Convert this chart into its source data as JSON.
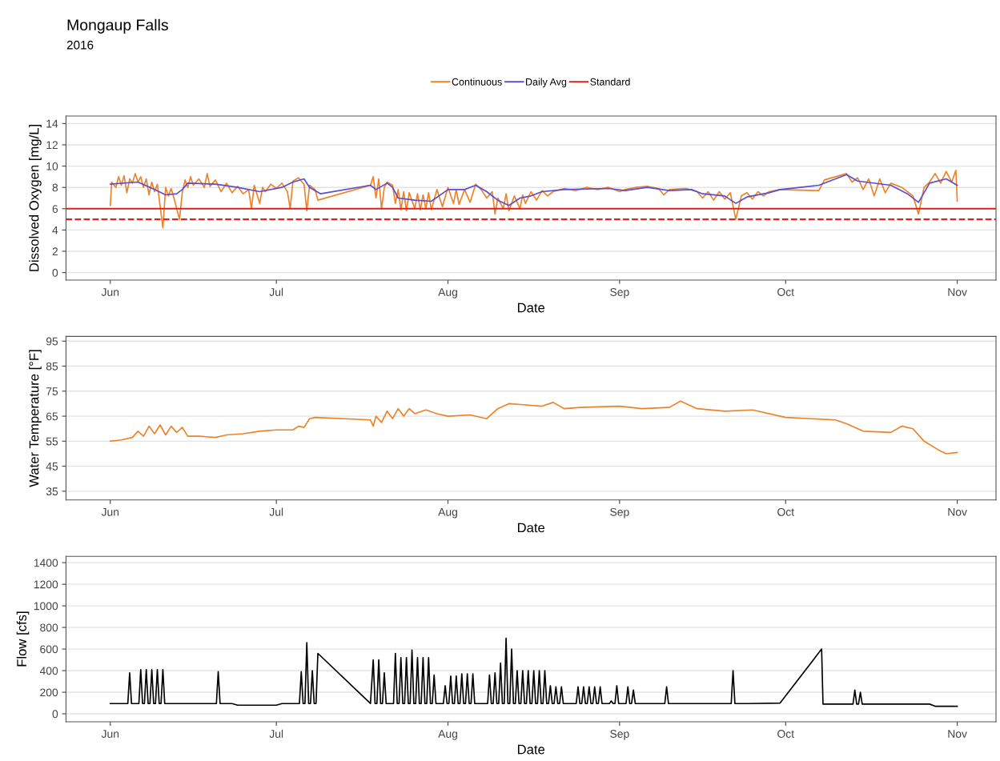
{
  "chart_data": [
    {
      "type": "line",
      "title": "Mongaup Falls",
      "subtitle": "2016",
      "xlabel": "Date",
      "ylabel": "Dissolved Oxygen [mg/L]",
      "legend": "top",
      "grid": "y",
      "line_style": "solid",
      "xlim": [
        "2016-05-24",
        "2016-11-08"
      ],
      "xticks": [
        {
          "value": "2016-06-01",
          "label": "Jun"
        },
        {
          "value": "2016-07-01",
          "label": "Jul"
        },
        {
          "value": "2016-08-01",
          "label": "Aug"
        },
        {
          "value": "2016-09-01",
          "label": "Sep"
        },
        {
          "value": "2016-10-01",
          "label": "Oct"
        },
        {
          "value": "2016-11-01",
          "label": "Nov"
        }
      ],
      "ylim": [
        -0.7,
        14.7
      ],
      "yticks": [
        0,
        2,
        4,
        6,
        8,
        10,
        12,
        14
      ],
      "ref_lines": [
        {
          "axis": "y",
          "value": 6,
          "label": "Standard",
          "color": "#e0201b",
          "line_style": "solid"
        },
        {
          "axis": "y",
          "value": 5,
          "color": "#e0201b",
          "line_style": "dashed"
        }
      ],
      "series": [
        {
          "name": "Continuous",
          "color": "#ee8228",
          "x": [
            "2016-06-01T00:00",
            "2016-06-01T06:00",
            "2016-06-02",
            "2016-06-02T12:00",
            "2016-06-03",
            "2016-06-03T12:00",
            "2016-06-04",
            "2016-06-04T12:00",
            "2016-06-05",
            "2016-06-05T12:00",
            "2016-06-06",
            "2016-06-06T12:00",
            "2016-06-07",
            "2016-06-07T12:00",
            "2016-06-08",
            "2016-06-08T12:00",
            "2016-06-09",
            "2016-06-09T12:00",
            "2016-06-10T12:00",
            "2016-06-11",
            "2016-06-11T12:00",
            "2016-06-12",
            "2016-06-12T12:00",
            "2016-06-13T12:00",
            "2016-06-14",
            "2016-06-14T12:00",
            "2016-06-15",
            "2016-06-15T12:00",
            "2016-06-16",
            "2016-06-17",
            "2016-06-18",
            "2016-06-18T12:00",
            "2016-06-19",
            "2016-06-20",
            "2016-06-21",
            "2016-06-22",
            "2016-06-23",
            "2016-06-24",
            "2016-06-25",
            "2016-06-26",
            "2016-06-26T12:00",
            "2016-06-27",
            "2016-06-28",
            "2016-06-28T12:00",
            "2016-06-29",
            "2016-06-30",
            "2016-07-01",
            "2016-07-02",
            "2016-07-03",
            "2016-07-03T12:00",
            "2016-07-04",
            "2016-07-05",
            "2016-07-06",
            "2016-07-06T12:00",
            "2016-07-07",
            "2016-07-08",
            "2016-07-08T12:00",
            "2016-07-18",
            "2016-07-18T12:00",
            "2016-07-19",
            "2016-07-19T12:00",
            "2016-07-20",
            "2016-07-20T12:00",
            "2016-07-21",
            "2016-07-22",
            "2016-07-22T12:00",
            "2016-07-23",
            "2016-07-23T12:00",
            "2016-07-24",
            "2016-07-24T12:00",
            "2016-07-25",
            "2016-07-26",
            "2016-07-26T12:00",
            "2016-07-27",
            "2016-07-27T12:00",
            "2016-07-28",
            "2016-07-28T12:00",
            "2016-07-29",
            "2016-07-30",
            "2016-07-31",
            "2016-08-01",
            "2016-08-02",
            "2016-08-02T12:00",
            "2016-08-03",
            "2016-08-04",
            "2016-08-05",
            "2016-08-06",
            "2016-08-07",
            "2016-08-08",
            "2016-08-09",
            "2016-08-09T12:00",
            "2016-08-10",
            "2016-08-11",
            "2016-08-11T12:00",
            "2016-08-12",
            "2016-08-13",
            "2016-08-14",
            "2016-08-14T12:00",
            "2016-08-15",
            "2016-08-16",
            "2016-08-17",
            "2016-08-18",
            "2016-08-19",
            "2016-08-20",
            "2016-08-22",
            "2016-08-24",
            "2016-08-26",
            "2016-08-28",
            "2016-08-30",
            "2016-09-01",
            "2016-09-02",
            "2016-09-04",
            "2016-09-06",
            "2016-09-08",
            "2016-09-09",
            "2016-09-10",
            "2016-09-13",
            "2016-09-15",
            "2016-09-16",
            "2016-09-17",
            "2016-09-18",
            "2016-09-19",
            "2016-09-20",
            "2016-09-21",
            "2016-09-22",
            "2016-09-23",
            "2016-09-24",
            "2016-09-25",
            "2016-09-26",
            "2016-09-27",
            "2016-09-28",
            "2016-09-30",
            "2016-10-07",
            "2016-10-08",
            "2016-10-12",
            "2016-10-13",
            "2016-10-14",
            "2016-10-15",
            "2016-10-16",
            "2016-10-17",
            "2016-10-18",
            "2016-10-19",
            "2016-10-20",
            "2016-10-22",
            "2016-10-24",
            "2016-10-25",
            "2016-10-26",
            "2016-10-27",
            "2016-10-28",
            "2016-10-29",
            "2016-10-30",
            "2016-10-31",
            "2016-10-31T18:00",
            "2016-11-01"
          ],
          "values": [
            6.3,
            8.5,
            8.0,
            9.0,
            8.2,
            9.1,
            7.5,
            8.8,
            8.4,
            9.3,
            8.5,
            9.0,
            8.0,
            8.8,
            7.3,
            8.5,
            7.6,
            8.3,
            4.2,
            8.0,
            7.2,
            7.9,
            7.0,
            5.0,
            7.5,
            8.7,
            8.0,
            9.0,
            8.2,
            8.8,
            8.0,
            9.3,
            8.1,
            8.7,
            7.6,
            8.4,
            7.5,
            8.1,
            7.4,
            7.8,
            6.0,
            8.2,
            6.5,
            8.0,
            7.6,
            8.3,
            7.9,
            8.4,
            7.6,
            6.0,
            8.6,
            8.9,
            8.3,
            5.8,
            8.2,
            7.8,
            6.8,
            8.2,
            9.0,
            7.0,
            8.8,
            6.0,
            8.0,
            8.5,
            8.2,
            6.5,
            7.8,
            5.9,
            7.6,
            5.8,
            7.5,
            6.0,
            7.4,
            5.9,
            7.3,
            6.0,
            7.5,
            5.9,
            7.8,
            6.2,
            8.0,
            6.5,
            7.8,
            6.4,
            7.8,
            6.6,
            8.3,
            7.8,
            7.0,
            7.6,
            5.5,
            7.0,
            6.0,
            7.4,
            5.8,
            7.2,
            6.0,
            7.3,
            6.5,
            7.6,
            6.8,
            7.7,
            7.2,
            7.6,
            7.9,
            7.7,
            8.0,
            7.8,
            8.0,
            7.6,
            7.8,
            8.0,
            8.1,
            7.9,
            7.3,
            7.8,
            7.9,
            7.6,
            7.0,
            7.6,
            6.8,
            7.6,
            6.9,
            7.5,
            5.0,
            7.2,
            7.5,
            6.9,
            7.6,
            7.2,
            7.6,
            7.8,
            7.7,
            8.7,
            9.3,
            8.5,
            8.9,
            7.8,
            8.8,
            7.2,
            8.8,
            7.5,
            8.4,
            8.0,
            7.2,
            5.5,
            8.0,
            8.5,
            9.3,
            8.4,
            9.5,
            8.5,
            9.6,
            6.7
          ]
        },
        {
          "name": "Daily Avg",
          "color": "#5a4fcf",
          "x": [
            "2016-06-01",
            "2016-06-06",
            "2016-06-09",
            "2016-06-11",
            "2016-06-13",
            "2016-06-14",
            "2016-06-15",
            "2016-06-20",
            "2016-06-24",
            "2016-06-28",
            "2016-07-02",
            "2016-07-04",
            "2016-07-06",
            "2016-07-07",
            "2016-07-09",
            "2016-07-18",
            "2016-07-19",
            "2016-07-21",
            "2016-07-22",
            "2016-07-23",
            "2016-07-26",
            "2016-07-29",
            "2016-08-01",
            "2016-08-04",
            "2016-08-06",
            "2016-08-08",
            "2016-08-10",
            "2016-08-12",
            "2016-08-14",
            "2016-08-16",
            "2016-08-18",
            "2016-08-22",
            "2016-08-30",
            "2016-09-02",
            "2016-09-06",
            "2016-09-10",
            "2016-09-14",
            "2016-09-16",
            "2016-09-20",
            "2016-09-22",
            "2016-09-24",
            "2016-09-28",
            "2016-09-30",
            "2016-10-07",
            "2016-10-12",
            "2016-10-14",
            "2016-10-20",
            "2016-10-23",
            "2016-10-25",
            "2016-10-27",
            "2016-10-30",
            "2016-11-01"
          ],
          "values": [
            8.3,
            8.5,
            7.8,
            7.3,
            7.4,
            7.8,
            8.4,
            8.3,
            8.0,
            7.6,
            8.0,
            8.5,
            8.8,
            8.0,
            7.4,
            8.2,
            7.8,
            8.4,
            8.0,
            7.0,
            6.8,
            6.7,
            7.8,
            7.8,
            8.2,
            7.6,
            6.8,
            6.3,
            7.0,
            7.2,
            7.6,
            7.8,
            7.9,
            7.7,
            8.0,
            7.7,
            7.8,
            7.4,
            7.2,
            6.5,
            7.1,
            7.5,
            7.8,
            8.2,
            9.2,
            8.6,
            8.2,
            7.4,
            6.6,
            8.4,
            8.8,
            8.2
          ]
        }
      ]
    },
    {
      "type": "line",
      "xlabel": "Date",
      "ylabel": "Water Temperature [°F]",
      "grid": "y",
      "line_style": "solid",
      "xlim": [
        "2016-05-24",
        "2016-11-08"
      ],
      "xticks": [
        {
          "value": "2016-06-01",
          "label": "Jun"
        },
        {
          "value": "2016-07-01",
          "label": "Jul"
        },
        {
          "value": "2016-08-01",
          "label": "Aug"
        },
        {
          "value": "2016-09-01",
          "label": "Sep"
        },
        {
          "value": "2016-10-01",
          "label": "Oct"
        },
        {
          "value": "2016-11-01",
          "label": "Nov"
        }
      ],
      "ylim": [
        31.5,
        96.9
      ],
      "yticks": [
        35,
        45,
        55,
        65,
        75,
        85,
        95
      ],
      "series": [
        {
          "color": "#ee8228",
          "x": [
            "2016-06-01",
            "2016-06-03",
            "2016-06-05",
            "2016-06-06",
            "2016-06-07",
            "2016-06-08",
            "2016-06-09",
            "2016-06-10",
            "2016-06-11",
            "2016-06-12",
            "2016-06-13",
            "2016-06-14",
            "2016-06-15",
            "2016-06-17",
            "2016-06-20",
            "2016-06-22",
            "2016-06-25",
            "2016-06-28",
            "2016-07-01",
            "2016-07-04",
            "2016-07-05",
            "2016-07-06",
            "2016-07-07",
            "2016-07-08",
            "2016-07-18",
            "2016-07-18T12:00",
            "2016-07-19",
            "2016-07-20",
            "2016-07-21",
            "2016-07-22",
            "2016-07-23",
            "2016-07-24",
            "2016-07-25",
            "2016-07-26",
            "2016-07-28",
            "2016-07-30",
            "2016-08-01",
            "2016-08-05",
            "2016-08-08",
            "2016-08-10",
            "2016-08-12",
            "2016-08-15",
            "2016-08-18",
            "2016-08-20",
            "2016-08-22",
            "2016-08-25",
            "2016-09-01",
            "2016-09-05",
            "2016-09-10",
            "2016-09-12",
            "2016-09-15",
            "2016-09-20",
            "2016-09-25",
            "2016-10-01",
            "2016-10-10",
            "2016-10-12",
            "2016-10-15",
            "2016-10-20",
            "2016-10-22",
            "2016-10-24",
            "2016-10-26",
            "2016-10-29",
            "2016-10-30",
            "2016-11-01"
          ],
          "values": [
            55.0,
            55.5,
            56.5,
            59.0,
            57.0,
            61.0,
            58.0,
            61.5,
            57.5,
            61.0,
            58.5,
            60.5,
            57.0,
            57.0,
            56.5,
            57.5,
            58.0,
            59.0,
            59.5,
            59.5,
            61.0,
            60.5,
            64.0,
            64.5,
            63.5,
            61.0,
            65.0,
            62.5,
            67.0,
            64.0,
            68.0,
            65.0,
            68.0,
            66.0,
            67.5,
            66.0,
            65.0,
            65.5,
            64.0,
            68.0,
            70.0,
            69.5,
            69.0,
            70.5,
            68.0,
            68.5,
            69.0,
            68.0,
            68.5,
            71.0,
            68.0,
            67.0,
            67.5,
            64.5,
            63.5,
            62.0,
            59.0,
            58.5,
            61.0,
            60.0,
            55.0,
            51.0,
            50.0,
            50.5
          ]
        }
      ]
    },
    {
      "type": "line",
      "xlabel": "Date",
      "ylabel": "Flow [cfs]",
      "grid": "y",
      "line_style": "solid",
      "xlim": [
        "2016-05-24",
        "2016-11-08"
      ],
      "xticks": [
        {
          "value": "2016-06-01",
          "label": "Jun"
        },
        {
          "value": "2016-07-01",
          "label": "Jul"
        },
        {
          "value": "2016-08-01",
          "label": "Aug"
        },
        {
          "value": "2016-09-01",
          "label": "Sep"
        },
        {
          "value": "2016-10-01",
          "label": "Oct"
        },
        {
          "value": "2016-11-01",
          "label": "Nov"
        }
      ],
      "ylim": [
        -74,
        1459
      ],
      "yticks": [
        0,
        200,
        400,
        600,
        800,
        1000,
        1200,
        1400
      ],
      "series": [
        {
          "color": "#000000",
          "x": [
            "2016-06-01",
            "2016-06-04T04:00",
            "2016-06-04T12:00",
            "2016-06-04T20:00",
            "2016-06-06T04:00",
            "2016-06-06T12:00",
            "2016-06-06T20:00",
            "2016-06-07T04:00",
            "2016-06-07T12:00",
            "2016-06-07T20:00",
            "2016-06-08T04:00",
            "2016-06-08T12:00",
            "2016-06-08T20:00",
            "2016-06-09T04:00",
            "2016-06-09T12:00",
            "2016-06-09T20:00",
            "2016-06-10T04:00",
            "2016-06-10T12:00",
            "2016-06-10T20:00",
            "2016-06-20T04:00",
            "2016-06-20T12:00",
            "2016-06-20T20:00",
            "2016-06-23",
            "2016-06-24",
            "2016-07-01",
            "2016-07-02",
            "2016-07-05T04:00",
            "2016-07-05T12:00",
            "2016-07-05T20:00",
            "2016-07-06T04:00",
            "2016-07-06T12:00",
            "2016-07-06T20:00",
            "2016-07-07T04:00",
            "2016-07-07T12:00",
            "2016-07-07T20:00",
            "2016-07-08T04:00",
            "2016-07-08T12:00",
            "2016-07-18",
            "2016-07-18T12:00",
            "2016-07-18T20:00",
            "2016-07-19T04:00",
            "2016-07-19T12:00",
            "2016-07-19T20:00",
            "2016-07-20T04:00",
            "2016-07-20T12:00",
            "2016-07-20T20:00",
            "2016-07-22T04:00",
            "2016-07-22T12:00",
            "2016-07-22T20:00",
            "2016-07-23T04:00",
            "2016-07-23T12:00",
            "2016-07-23T20:00",
            "2016-07-24T04:00",
            "2016-07-24T12:00",
            "2016-07-24T20:00",
            "2016-07-25T04:00",
            "2016-07-25T12:00",
            "2016-07-25T20:00",
            "2016-07-26T04:00",
            "2016-07-26T12:00",
            "2016-07-26T20:00",
            "2016-07-27T04:00",
            "2016-07-27T12:00",
            "2016-07-27T20:00",
            "2016-07-28T04:00",
            "2016-07-28T12:00",
            "2016-07-28T20:00",
            "2016-07-29T04:00",
            "2016-07-29T12:00",
            "2016-07-29T20:00",
            "2016-07-31T04:00",
            "2016-07-31T12:00",
            "2016-07-31T20:00",
            "2016-08-01T04:00",
            "2016-08-01T12:00",
            "2016-08-01T20:00",
            "2016-08-02T04:00",
            "2016-08-02T12:00",
            "2016-08-02T20:00",
            "2016-08-03T04:00",
            "2016-08-03T12:00",
            "2016-08-03T20:00",
            "2016-08-04T04:00",
            "2016-08-04T12:00",
            "2016-08-04T20:00",
            "2016-08-05T04:00",
            "2016-08-05T12:00",
            "2016-08-05T20:00",
            "2016-08-08T04:00",
            "2016-08-08T12:00",
            "2016-08-08T20:00",
            "2016-08-09T04:00",
            "2016-08-09T12:00",
            "2016-08-09T20:00",
            "2016-08-10T04:00",
            "2016-08-10T12:00",
            "2016-08-10T20:00",
            "2016-08-11T04:00",
            "2016-08-11T12:00",
            "2016-08-11T20:00",
            "2016-08-12T04:00",
            "2016-08-12T12:00",
            "2016-08-12T20:00",
            "2016-08-13T04:00",
            "2016-08-13T12:00",
            "2016-08-13T20:00",
            "2016-08-14T04:00",
            "2016-08-14T12:00",
            "2016-08-14T20:00",
            "2016-08-15T04:00",
            "2016-08-15T12:00",
            "2016-08-15T20:00",
            "2016-08-16T04:00",
            "2016-08-16T12:00",
            "2016-08-16T20:00",
            "2016-08-17T04:00",
            "2016-08-17T12:00",
            "2016-08-17T20:00",
            "2016-08-18T04:00",
            "2016-08-18T12:00",
            "2016-08-18T20:00",
            "2016-08-19T04:00",
            "2016-08-19T12:00",
            "2016-08-19T20:00",
            "2016-08-20T04:00",
            "2016-08-20T12:00",
            "2016-08-20T20:00",
            "2016-08-21T04:00",
            "2016-08-21T12:00",
            "2016-08-21T20:00",
            "2016-08-24T04:00",
            "2016-08-24T12:00",
            "2016-08-24T20:00",
            "2016-08-25T04:00",
            "2016-08-25T12:00",
            "2016-08-25T20:00",
            "2016-08-26T04:00",
            "2016-08-26T12:00",
            "2016-08-26T20:00",
            "2016-08-27T04:00",
            "2016-08-27T12:00",
            "2016-08-27T20:00",
            "2016-08-28T04:00",
            "2016-08-28T12:00",
            "2016-08-28T20:00",
            "2016-08-30T04:00",
            "2016-08-30T12:00",
            "2016-08-30T20:00",
            "2016-08-31T04:00",
            "2016-08-31T12:00",
            "2016-08-31T20:00",
            "2016-09-02T04:00",
            "2016-09-02T12:00",
            "2016-09-02T20:00",
            "2016-09-03T04:00",
            "2016-09-03T12:00",
            "2016-09-03T20:00",
            "2016-09-09T04:00",
            "2016-09-09T12:00",
            "2016-09-09T20:00",
            "2016-09-21T04:00",
            "2016-09-21T12:00",
            "2016-09-21T20:00",
            "2016-09-24",
            "2016-09-30",
            "2016-10-07T12:00",
            "2016-10-07T18:00",
            "2016-10-13T04:00",
            "2016-10-13T12:00",
            "2016-10-13T20:00",
            "2016-10-14T04:00",
            "2016-10-14T12:00",
            "2016-10-14T20:00",
            "2016-10-27",
            "2016-10-28",
            "2016-11-01"
          ],
          "values": [
            95,
            95,
            380,
            95,
            95,
            410,
            95,
            95,
            410,
            95,
            95,
            410,
            95,
            95,
            410,
            95,
            95,
            410,
            95,
            95,
            390,
            95,
            95,
            80,
            80,
            95,
            95,
            390,
            95,
            95,
            660,
            95,
            95,
            400,
            95,
            95,
            560,
            95,
            500,
            95,
            95,
            500,
            95,
            95,
            380,
            95,
            95,
            560,
            95,
            95,
            520,
            95,
            95,
            520,
            95,
            95,
            590,
            95,
            95,
            520,
            95,
            95,
            520,
            95,
            95,
            520,
            95,
            95,
            360,
            95,
            95,
            260,
            95,
            95,
            350,
            95,
            95,
            350,
            95,
            95,
            370,
            95,
            95,
            370,
            95,
            95,
            370,
            95,
            95,
            360,
            95,
            95,
            380,
            95,
            95,
            470,
            95,
            95,
            700,
            95,
            95,
            600,
            95,
            95,
            400,
            95,
            95,
            400,
            95,
            95,
            400,
            95,
            95,
            400,
            95,
            95,
            400,
            95,
            95,
            400,
            95,
            95,
            260,
            95,
            95,
            250,
            95,
            95,
            250,
            95,
            95,
            250,
            95,
            95,
            250,
            95,
            95,
            250,
            95,
            95,
            250,
            95,
            95,
            250,
            95,
            95,
            120,
            95,
            95,
            260,
            95,
            95,
            250,
            95,
            95,
            220,
            95,
            95,
            250,
            95,
            95,
            400,
            95,
            95,
            100,
            600,
            90,
            90,
            220,
            90,
            90,
            200,
            90,
            90,
            70,
            70
          ]
        }
      ]
    }
  ]
}
